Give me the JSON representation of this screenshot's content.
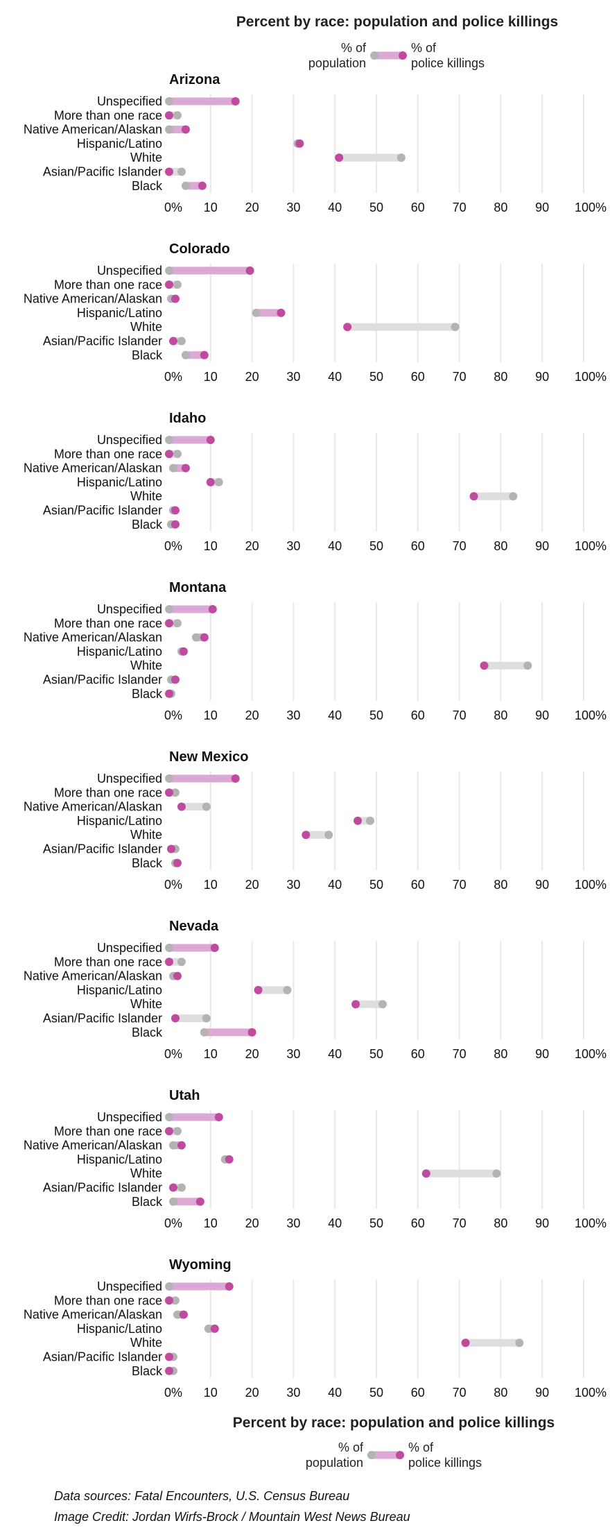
{
  "chart_data": {
    "type": "dumbbell",
    "title": "Percent by race: population and police killings",
    "legend": {
      "population_label": [
        "% of",
        "population"
      ],
      "killings_label": [
        "% of",
        "police killings"
      ],
      "population_color": "#b3b3b3",
      "killings_color": "#bf4a9f",
      "killings_bar_color": "#dba9d3",
      "population_bar_color": "#dedede"
    },
    "categories": [
      "Unspecified",
      "More than one race",
      "Native American/Alaskan",
      "Hispanic/Latino",
      "White",
      "Asian/Pacific Islander",
      "Black"
    ],
    "x_ticks": [
      "0%",
      "10",
      "20",
      "30",
      "40",
      "50",
      "60",
      "70",
      "80",
      "90",
      "100%"
    ],
    "xlim": [
      0,
      100
    ],
    "panels": [
      {
        "state": "Arizona",
        "population": [
          0,
          2,
          0,
          31,
          56,
          3,
          4
        ],
        "killings": [
          16,
          0,
          4,
          31.5,
          41,
          0,
          8
        ]
      },
      {
        "state": "Colorado",
        "population": [
          0,
          2,
          0.5,
          21,
          69,
          3,
          4
        ],
        "killings": [
          19.5,
          0,
          1.5,
          27,
          43,
          1,
          8.5
        ]
      },
      {
        "state": "Idaho",
        "population": [
          0,
          2,
          1,
          12,
          83,
          1,
          0.5
        ],
        "killings": [
          10,
          0,
          4,
          10,
          73.5,
          1.5,
          1.5
        ]
      },
      {
        "state": "Montana",
        "population": [
          0,
          2,
          6.5,
          3,
          86.5,
          0.5,
          0.5
        ],
        "killings": [
          10.5,
          0,
          8.5,
          3.5,
          76,
          1.5,
          0
        ]
      },
      {
        "state": "New Mexico",
        "population": [
          0,
          1.5,
          9,
          48.5,
          38.5,
          1.5,
          1.5
        ],
        "killings": [
          16,
          0,
          3,
          45.5,
          33,
          0.5,
          2
        ]
      },
      {
        "state": "Nevada",
        "population": [
          0,
          3,
          1,
          28.5,
          51.5,
          9,
          8.5
        ],
        "killings": [
          11,
          0,
          2,
          21.5,
          45,
          1.5,
          20
        ]
      },
      {
        "state": "Utah",
        "population": [
          0,
          2,
          1,
          13.5,
          79,
          3,
          1
        ],
        "killings": [
          12,
          0,
          3,
          14.5,
          62,
          1,
          7.5
        ]
      },
      {
        "state": "Wyoming",
        "population": [
          0,
          1.5,
          2,
          9.5,
          84.5,
          1,
          1
        ],
        "killings": [
          14.5,
          0,
          3.5,
          11,
          71.5,
          0,
          0
        ]
      }
    ]
  },
  "footer": {
    "sources": "Data sources: Fatal Encounters, U.S. Census Bureau",
    "credit": "Image Credit: Jordan Wirfs-Brock / Mountain West News Bureau"
  }
}
